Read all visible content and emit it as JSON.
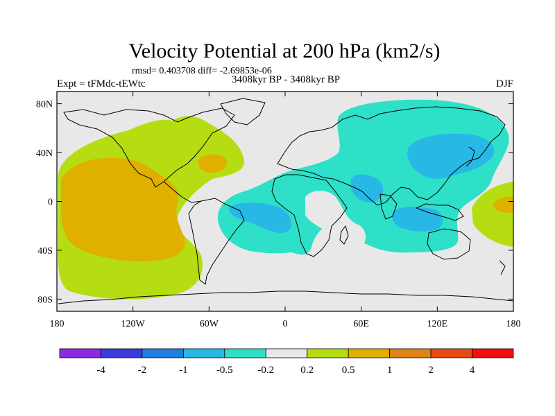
{
  "header": {
    "title": "Velocity Potential at 200 hPa (km2/s)",
    "stats": "rmsd= 0.403708 diff= -2.69853e-06",
    "left_label": "Expt = tFMdc-tEWtc",
    "center_label": "3408kyr BP - 3408kyr BP",
    "right_label": "DJF"
  },
  "axes": {
    "x_ticks": [
      "180",
      "120W",
      "60W",
      "0",
      "60E",
      "120E",
      "180"
    ],
    "y_ticks": [
      "80N",
      "40N",
      "0",
      "40S",
      "80S"
    ]
  },
  "colorbar": {
    "labels": [
      "-4",
      "-2",
      "-1",
      "-0.5",
      "-0.2",
      "0.2",
      "0.5",
      "1",
      "2",
      "4"
    ],
    "colors": [
      "#8a2be2",
      "#3b3bdc",
      "#1e7fe0",
      "#27b8e6",
      "#2ee0c8",
      "#e8e8e8",
      "#b5dd12",
      "#e0b000",
      "#e0841a",
      "#e84a10",
      "#f01010"
    ]
  },
  "map_colors": {
    "background": "#e8e8e8",
    "neg_weak": "#2ee0c8",
    "neg_mid": "#27b8e6",
    "pos_weak": "#b5dd12",
    "pos_mid": "#e0b000",
    "pos_strong": "#e0841a"
  }
}
